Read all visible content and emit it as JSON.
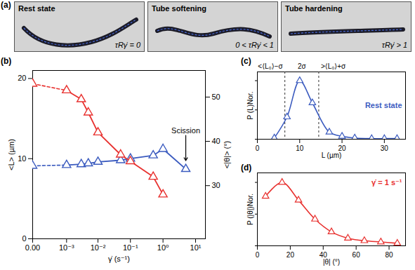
{
  "chart_data": [
    {
      "type": "images",
      "label": "(a)",
      "frames": [
        {
          "title": "Rest state",
          "condition": "τRγ̇ = 0"
        },
        {
          "title": "Tube softening",
          "condition": "0 < τRγ̇ < 1"
        },
        {
          "title": "Tube hardening",
          "condition": "τRγ̇ > 1"
        }
      ]
    },
    {
      "type": "line",
      "label": "(b)",
      "log": "x",
      "x": [
        0,
        0.001,
        0.003,
        0.005,
        0.01,
        0.05,
        0.1,
        0.5,
        1,
        5
      ],
      "series": [
        {
          "name": "<L> (µm)",
          "color": "#3b5bbf",
          "marker": "triangle",
          "values": [
            9.1,
            9.2,
            9.3,
            9.4,
            9.6,
            9.8,
            10.0,
            10.4,
            11.2,
            8.7
          ]
        },
        {
          "name": "<|θ|> (°)",
          "color": "#e8312f",
          "marker": "triangle",
          "axis": "y2",
          "values": [
            53,
            51.5,
            49.5,
            46.5,
            42,
            37,
            35.5,
            32,
            28,
            null
          ]
        }
      ],
      "xlabel": "γ̇ (s⁻¹)",
      "xlim": [
        0,
        20
      ],
      "xticks": [
        {
          "value": 0,
          "label": "0.00"
        },
        {
          "value": 0.001,
          "label": "10⁻³"
        },
        {
          "value": 0.01,
          "label": "10⁻²"
        },
        {
          "value": 0.1,
          "label": "10⁻¹"
        },
        {
          "value": 1,
          "label": "10⁰"
        },
        {
          "value": 10,
          "label": "10¹"
        }
      ],
      "ylim": [
        0,
        21
      ],
      "yticks": [
        0,
        10,
        20
      ],
      "y2lim": [
        18,
        56
      ],
      "y2ticks": [
        30,
        40,
        50
      ],
      "annotations": [
        {
          "text": "Scission"
        }
      ]
    },
    {
      "type": "line",
      "label": "(c)",
      "x": [
        4,
        7,
        10,
        13,
        17,
        20,
        23,
        27,
        30,
        33
      ],
      "series": [
        {
          "name": "Rest state",
          "color": "#3b5bbf",
          "marker": "triangle",
          "values": [
            0.02,
            0.38,
            1.0,
            0.62,
            0.12,
            0.05,
            0.02,
            0.01,
            0.01,
            0.01
          ]
        }
      ],
      "xlabel": "L (µm)",
      "ylabel": "P (L)Nor.",
      "xlim": [
        0,
        35
      ],
      "xticks": [
        0,
        10,
        20,
        30
      ],
      "ylim": [
        0,
        1.15
      ],
      "yticks": [
        0,
        0.5,
        1
      ],
      "tick_labels": "x",
      "vlines": [
        6.5,
        14.5
      ],
      "annotations": [
        {
          "text": "<⟨L₀⟩−σ"
        },
        {
          "text": "2σ"
        },
        {
          "text": ">⟨L₀⟩+σ"
        }
      ]
    },
    {
      "type": "line",
      "label": "(d)",
      "x": [
        5,
        15,
        25,
        35,
        45,
        55,
        65,
        75,
        85
      ],
      "series": [
        {
          "name": "γ̇ = 1 s⁻¹",
          "color": "#e8312f",
          "marker": "triangle",
          "values": [
            0.78,
            1.0,
            0.72,
            0.42,
            0.22,
            0.12,
            0.08,
            0.06,
            0.04
          ]
        }
      ],
      "xlabel": "|θ| (°)",
      "ylabel": "P (|θ|)Nor.",
      "xlim": [
        0,
        90
      ],
      "xticks": [
        0,
        20,
        40,
        60,
        80
      ],
      "ylim": [
        0,
        1.15
      ],
      "yticks": [
        0,
        0.5,
        1
      ],
      "tick_labels": "x"
    }
  ]
}
